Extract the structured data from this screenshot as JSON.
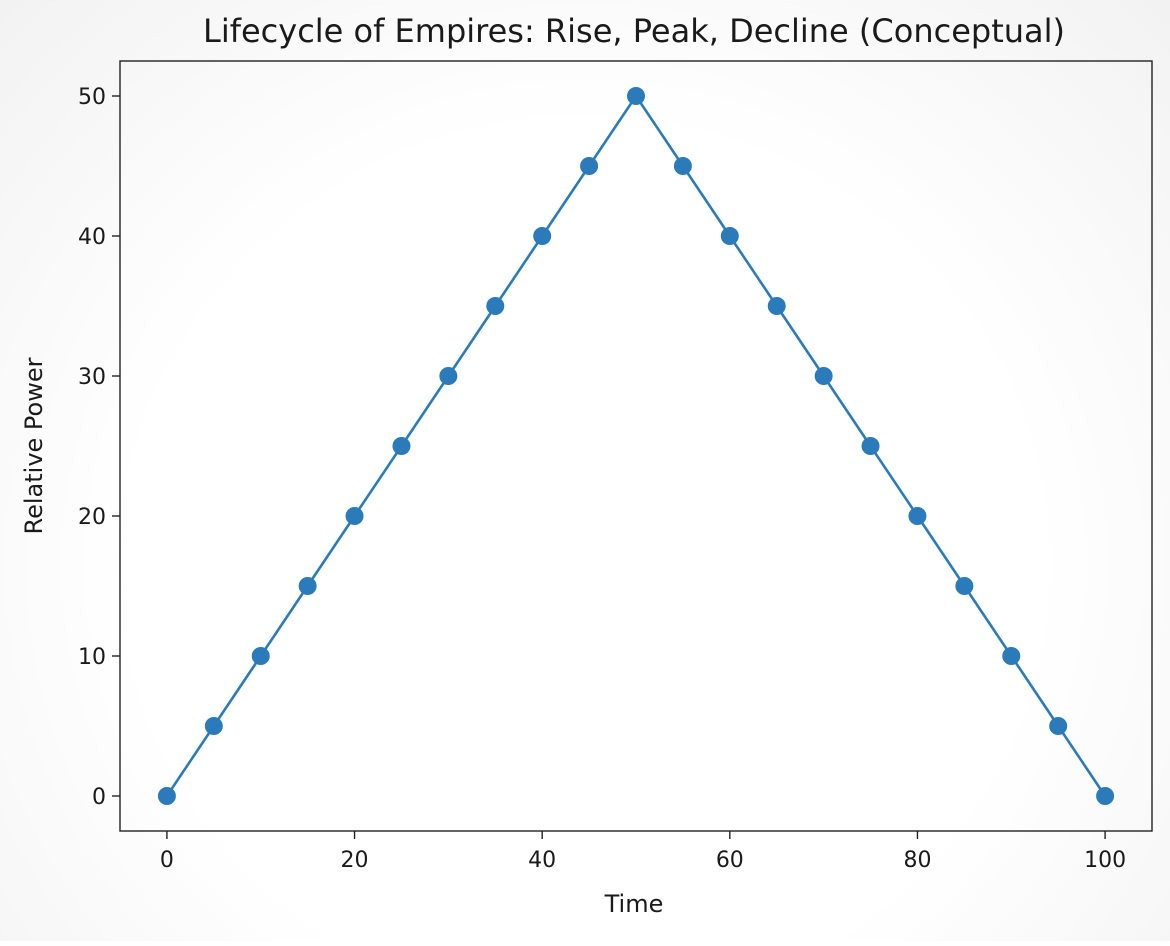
{
  "chart_data": {
    "type": "line",
    "title": "Lifecycle of Empires: Rise, Peak, Decline (Conceptual)",
    "xlabel": "Time",
    "ylabel": "Relative Power",
    "xlim": [
      -5,
      105
    ],
    "ylim": [
      -2.5,
      52.5
    ],
    "xticks": [
      "0",
      "20",
      "40",
      "60",
      "80",
      "100"
    ],
    "yticks": [
      "0",
      "10",
      "20",
      "30",
      "40",
      "50"
    ],
    "grid": false,
    "marker": "circle",
    "color": "#2b7bba",
    "series": [
      {
        "x": [
          0,
          5,
          10,
          15,
          20,
          25,
          30,
          35,
          40,
          45,
          50,
          55,
          60,
          65,
          70,
          75,
          80,
          85,
          90,
          95,
          100
        ],
        "values": [
          0,
          5,
          10,
          15,
          20,
          25,
          30,
          35,
          40,
          45,
          50,
          45,
          40,
          35,
          30,
          25,
          20,
          15,
          10,
          5,
          0
        ]
      }
    ]
  }
}
